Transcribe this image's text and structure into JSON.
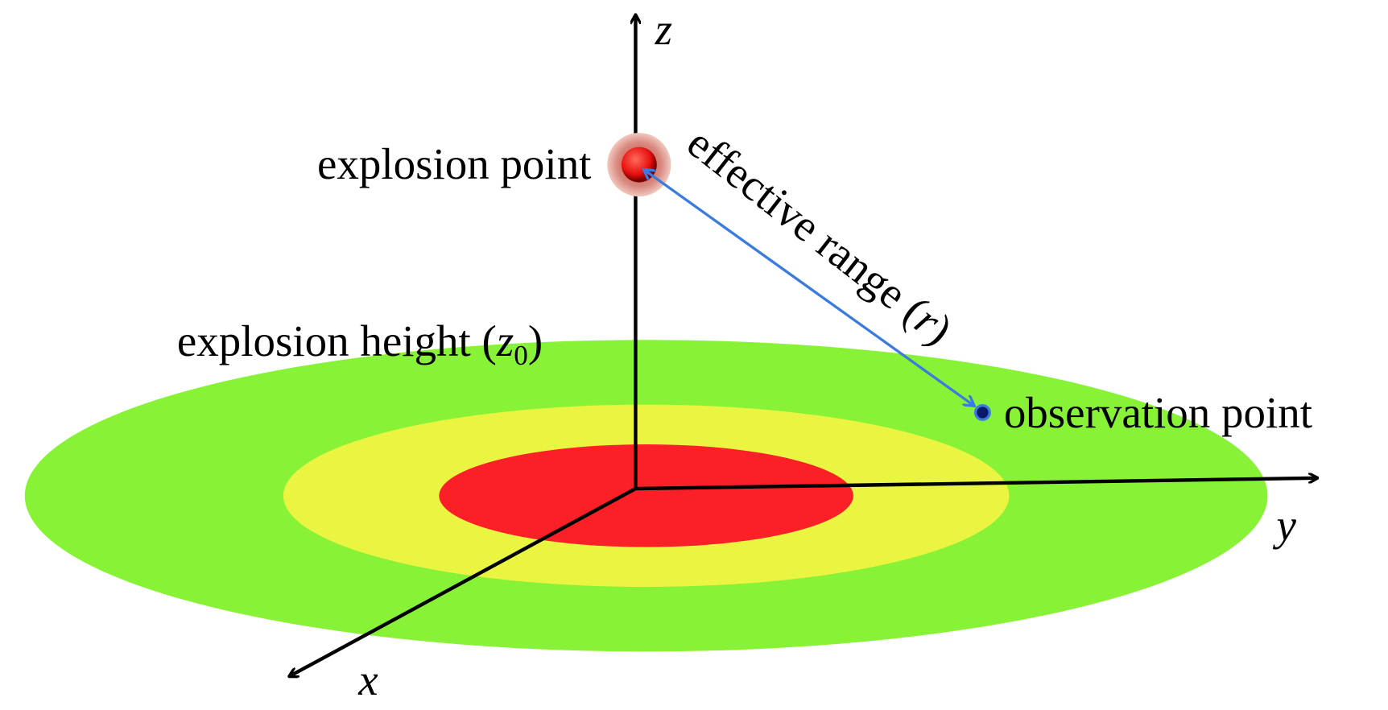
{
  "axes": {
    "x": "x",
    "y": "y",
    "z": "z"
  },
  "explosion_point": "explosion point",
  "observation_point": "observation point",
  "explosion_height": {
    "text": "explosion height (",
    "symbol": "z",
    "subscript": "0",
    "close": ")"
  },
  "effective_range": {
    "text": "effective range (",
    "symbol": "r",
    "close": ")"
  }
}
